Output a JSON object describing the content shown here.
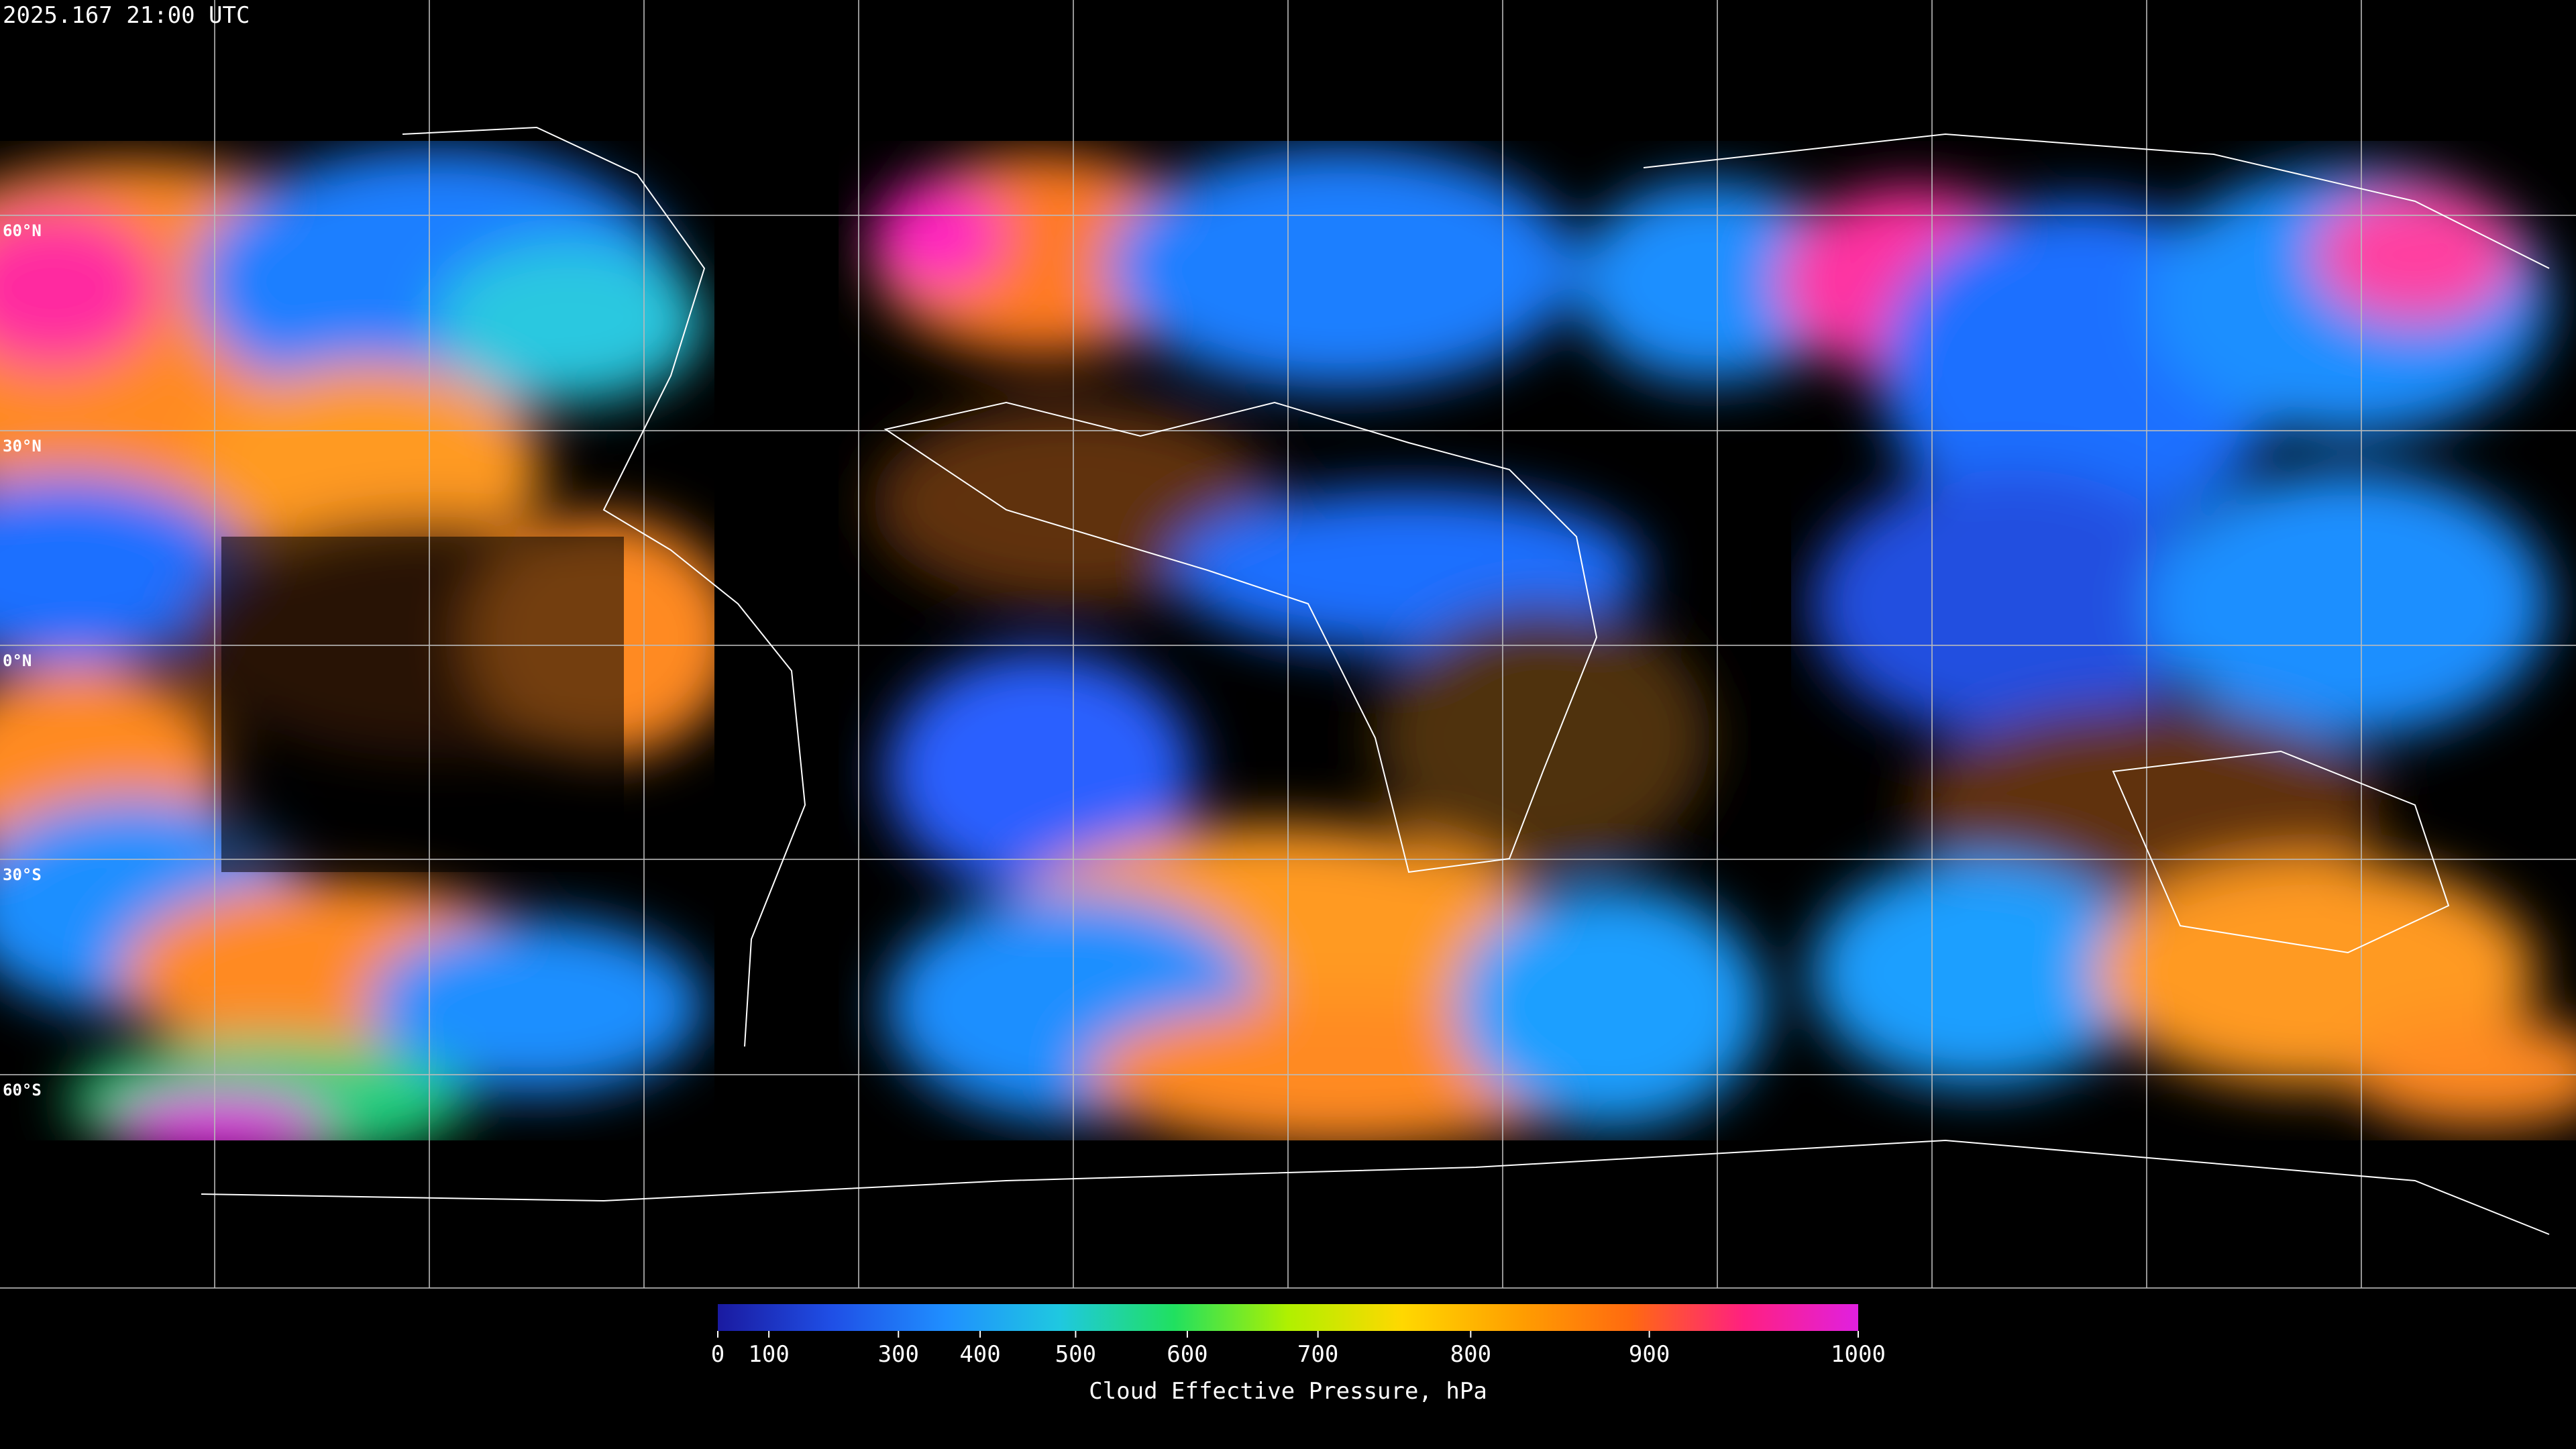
{
  "title": "2025.167 21:00 UTC",
  "latitude_labels": [
    "60°N",
    "30°N",
    "0°N",
    "30°S",
    "60°S"
  ],
  "colorbar": {
    "label": "Cloud Effective Pressure, hPa",
    "lim": [
      0,
      1000
    ],
    "ticks": [
      0,
      100,
      300,
      400,
      500,
      600,
      700,
      800,
      900,
      1000
    ],
    "scale": "exponential",
    "colors": [
      "#1a1aa0",
      "#1f4fe6",
      "#1f8fff",
      "#1fc8e0",
      "#20e060",
      "#b0f000",
      "#ffd800",
      "#ffa000",
      "#ff6a10",
      "#ff2080",
      "#e020e0"
    ]
  }
}
